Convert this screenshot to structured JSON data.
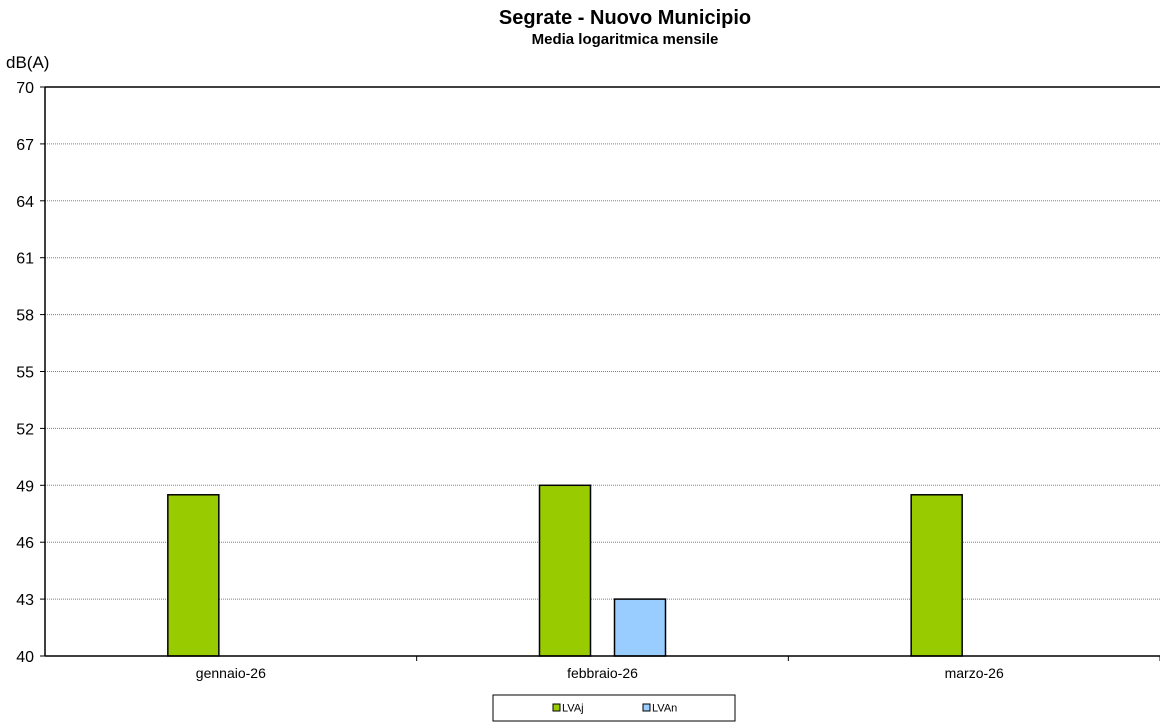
{
  "chart_data": {
    "type": "bar",
    "title": "Segrate - Nuovo Municipio",
    "subtitle": "Media logaritmica mensile",
    "ylabel": "dB(A)",
    "xlabel": "",
    "categories": [
      "gennaio-26",
      "febbraio-26",
      "marzo-26"
    ],
    "ylim": [
      40,
      70
    ],
    "yticks": [
      40,
      43,
      46,
      49,
      52,
      55,
      58,
      61,
      64,
      67,
      70
    ],
    "grid": "horizontal-dotted",
    "legend_position": "bottom",
    "series": [
      {
        "name": "LVAj",
        "color": "#99cc00",
        "values": [
          48.5,
          49.0,
          48.5
        ]
      },
      {
        "name": "LVAn",
        "color": "#99ccff",
        "values": [
          40.0,
          43.0,
          null
        ]
      }
    ]
  }
}
